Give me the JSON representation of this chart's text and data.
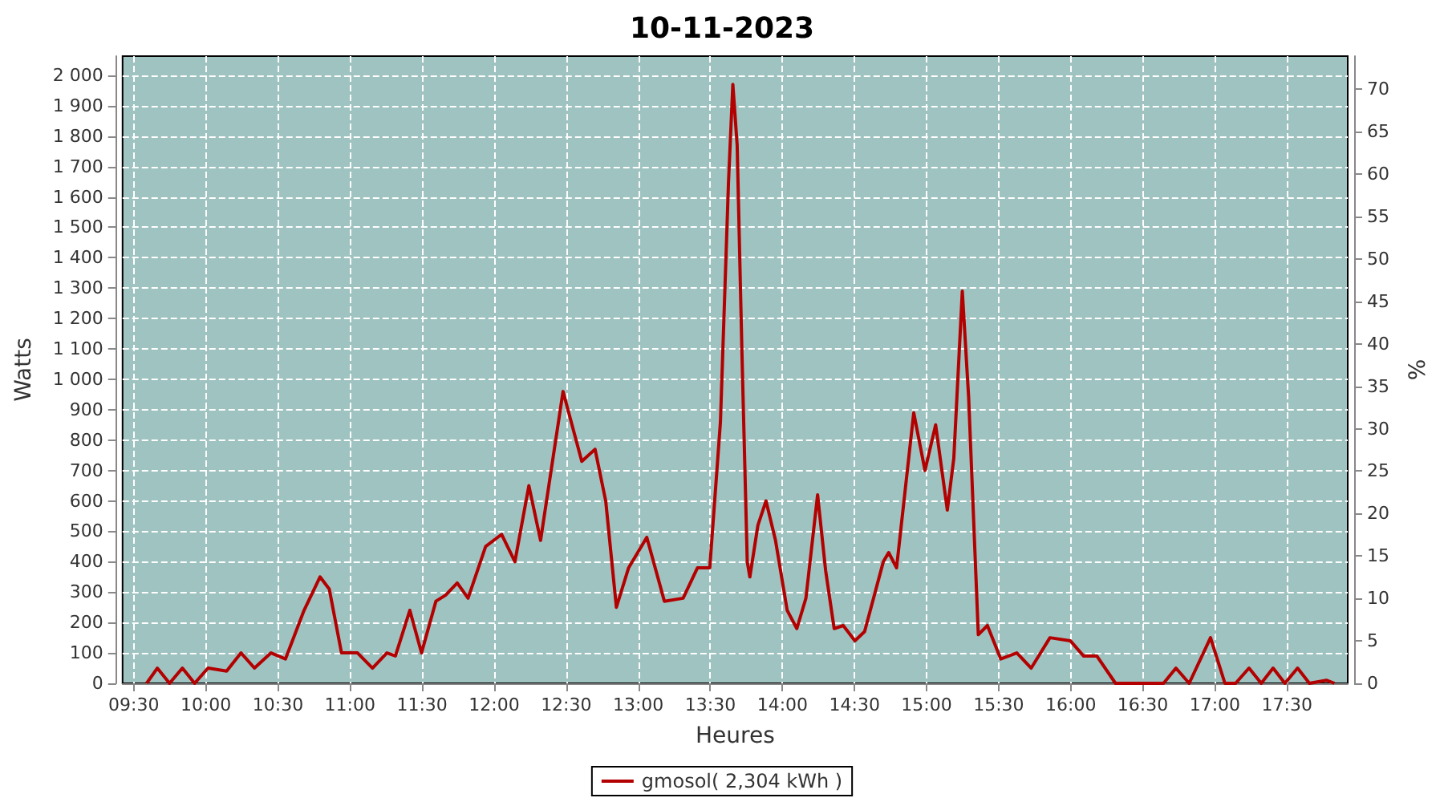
{
  "chart_data": {
    "type": "line",
    "title": "10-11-2023",
    "xlabel": "Heures",
    "ylabel": "Watts",
    "y2label": "%",
    "xlim": [
      9.422,
      17.922
    ],
    "xticks": [
      {
        "value": 9.5,
        "label": "09:30"
      },
      {
        "value": 10,
        "label": "10:00"
      },
      {
        "value": 10.5,
        "label": "10:30"
      },
      {
        "value": 11,
        "label": "11:00"
      },
      {
        "value": 11.5,
        "label": "11:30"
      },
      {
        "value": 12,
        "label": "12:00"
      },
      {
        "value": 12.5,
        "label": "12:30"
      },
      {
        "value": 13,
        "label": "13:00"
      },
      {
        "value": 13.5,
        "label": "13:30"
      },
      {
        "value": 14,
        "label": "14:00"
      },
      {
        "value": 14.5,
        "label": "14:30"
      },
      {
        "value": 15,
        "label": "15:00"
      },
      {
        "value": 15.5,
        "label": "15:30"
      },
      {
        "value": 16,
        "label": "16:00"
      },
      {
        "value": 16.5,
        "label": "16:30"
      },
      {
        "value": 17,
        "label": "17:00"
      },
      {
        "value": 17.5,
        "label": "17:30"
      }
    ],
    "ylim": [
      0,
      2063
    ],
    "yticks": [
      0,
      100,
      200,
      300,
      400,
      500,
      600,
      700,
      800,
      900,
      {
        "value": 1000,
        "label": "1 000"
      },
      {
        "value": 1100,
        "label": "1 100"
      },
      {
        "value": 1200,
        "label": "1 200"
      },
      {
        "value": 1300,
        "label": "1 300"
      },
      {
        "value": 1400,
        "label": "1 400"
      },
      {
        "value": 1500,
        "label": "1 500"
      },
      {
        "value": 1600,
        "label": "1 600"
      },
      {
        "value": 1700,
        "label": "1 700"
      },
      {
        "value": 1800,
        "label": "1 800"
      },
      {
        "value": 1900,
        "label": "1 900"
      },
      {
        "value": 2000,
        "label": "2 000"
      }
    ],
    "y2lim": [
      0,
      73.9
    ],
    "y2ticks": [
      0,
      5,
      10,
      15,
      20,
      25,
      30,
      35,
      40,
      45,
      50,
      55,
      60,
      65,
      70
    ],
    "grid": true,
    "legend": "bottom",
    "marker": "none",
    "line_style": "solid",
    "series": [
      {
        "name": "gmosol( 2,304 kWh )",
        "color": "#b30000",
        "x": [
          9.589,
          9.663,
          9.748,
          9.837,
          9.922,
          10.015,
          10.144,
          10.244,
          10.337,
          10.452,
          10.552,
          10.681,
          10.792,
          10.856,
          10.941,
          11.052,
          11.156,
          11.256,
          11.315,
          11.415,
          11.496,
          11.596,
          11.663,
          11.744,
          11.819,
          11.941,
          12.052,
          12.144,
          12.241,
          12.322,
          12.478,
          12.608,
          12.7,
          12.774,
          12.848,
          12.933,
          13.059,
          13.181,
          13.311,
          13.411,
          13.496,
          13.57,
          13.626,
          13.656,
          13.686,
          13.719,
          13.756,
          13.774,
          13.83,
          13.886,
          13.952,
          14.033,
          14.1,
          14.163,
          14.244,
          14.3,
          14.359,
          14.422,
          14.503,
          14.57,
          14.7,
          14.737,
          14.792,
          14.911,
          14.989,
          15.063,
          15.144,
          15.189,
          15.248,
          15.292,
          15.359,
          15.422,
          15.515,
          15.626,
          15.726,
          15.856,
          15.997,
          16.089,
          16.181,
          16.311,
          16.552,
          16.644,
          16.73,
          16.822,
          16.97,
          17.07,
          17.144,
          17.237,
          17.322,
          17.404,
          17.486,
          17.574,
          17.656,
          17.774,
          17.83
        ],
        "values": [
          0,
          50,
          0,
          50,
          0,
          50,
          40,
          100,
          50,
          100,
          80,
          240,
          350,
          310,
          100,
          100,
          50,
          100,
          90,
          240,
          100,
          270,
          290,
          330,
          280,
          450,
          490,
          400,
          650,
          470,
          960,
          730,
          770,
          600,
          250,
          380,
          480,
          270,
          280,
          380,
          380,
          860,
          1650,
          1970,
          1770,
          1090,
          400,
          350,
          520,
          600,
          470,
          240,
          180,
          280,
          620,
          370,
          180,
          190,
          140,
          170,
          400,
          430,
          380,
          890,
          700,
          850,
          570,
          740,
          1290,
          940,
          160,
          190,
          80,
          100,
          50,
          150,
          140,
          90,
          90,
          0,
          0,
          0,
          50,
          0,
          150,
          0,
          0,
          50,
          0,
          50,
          0,
          50,
          0,
          10,
          0
        ]
      }
    ]
  }
}
